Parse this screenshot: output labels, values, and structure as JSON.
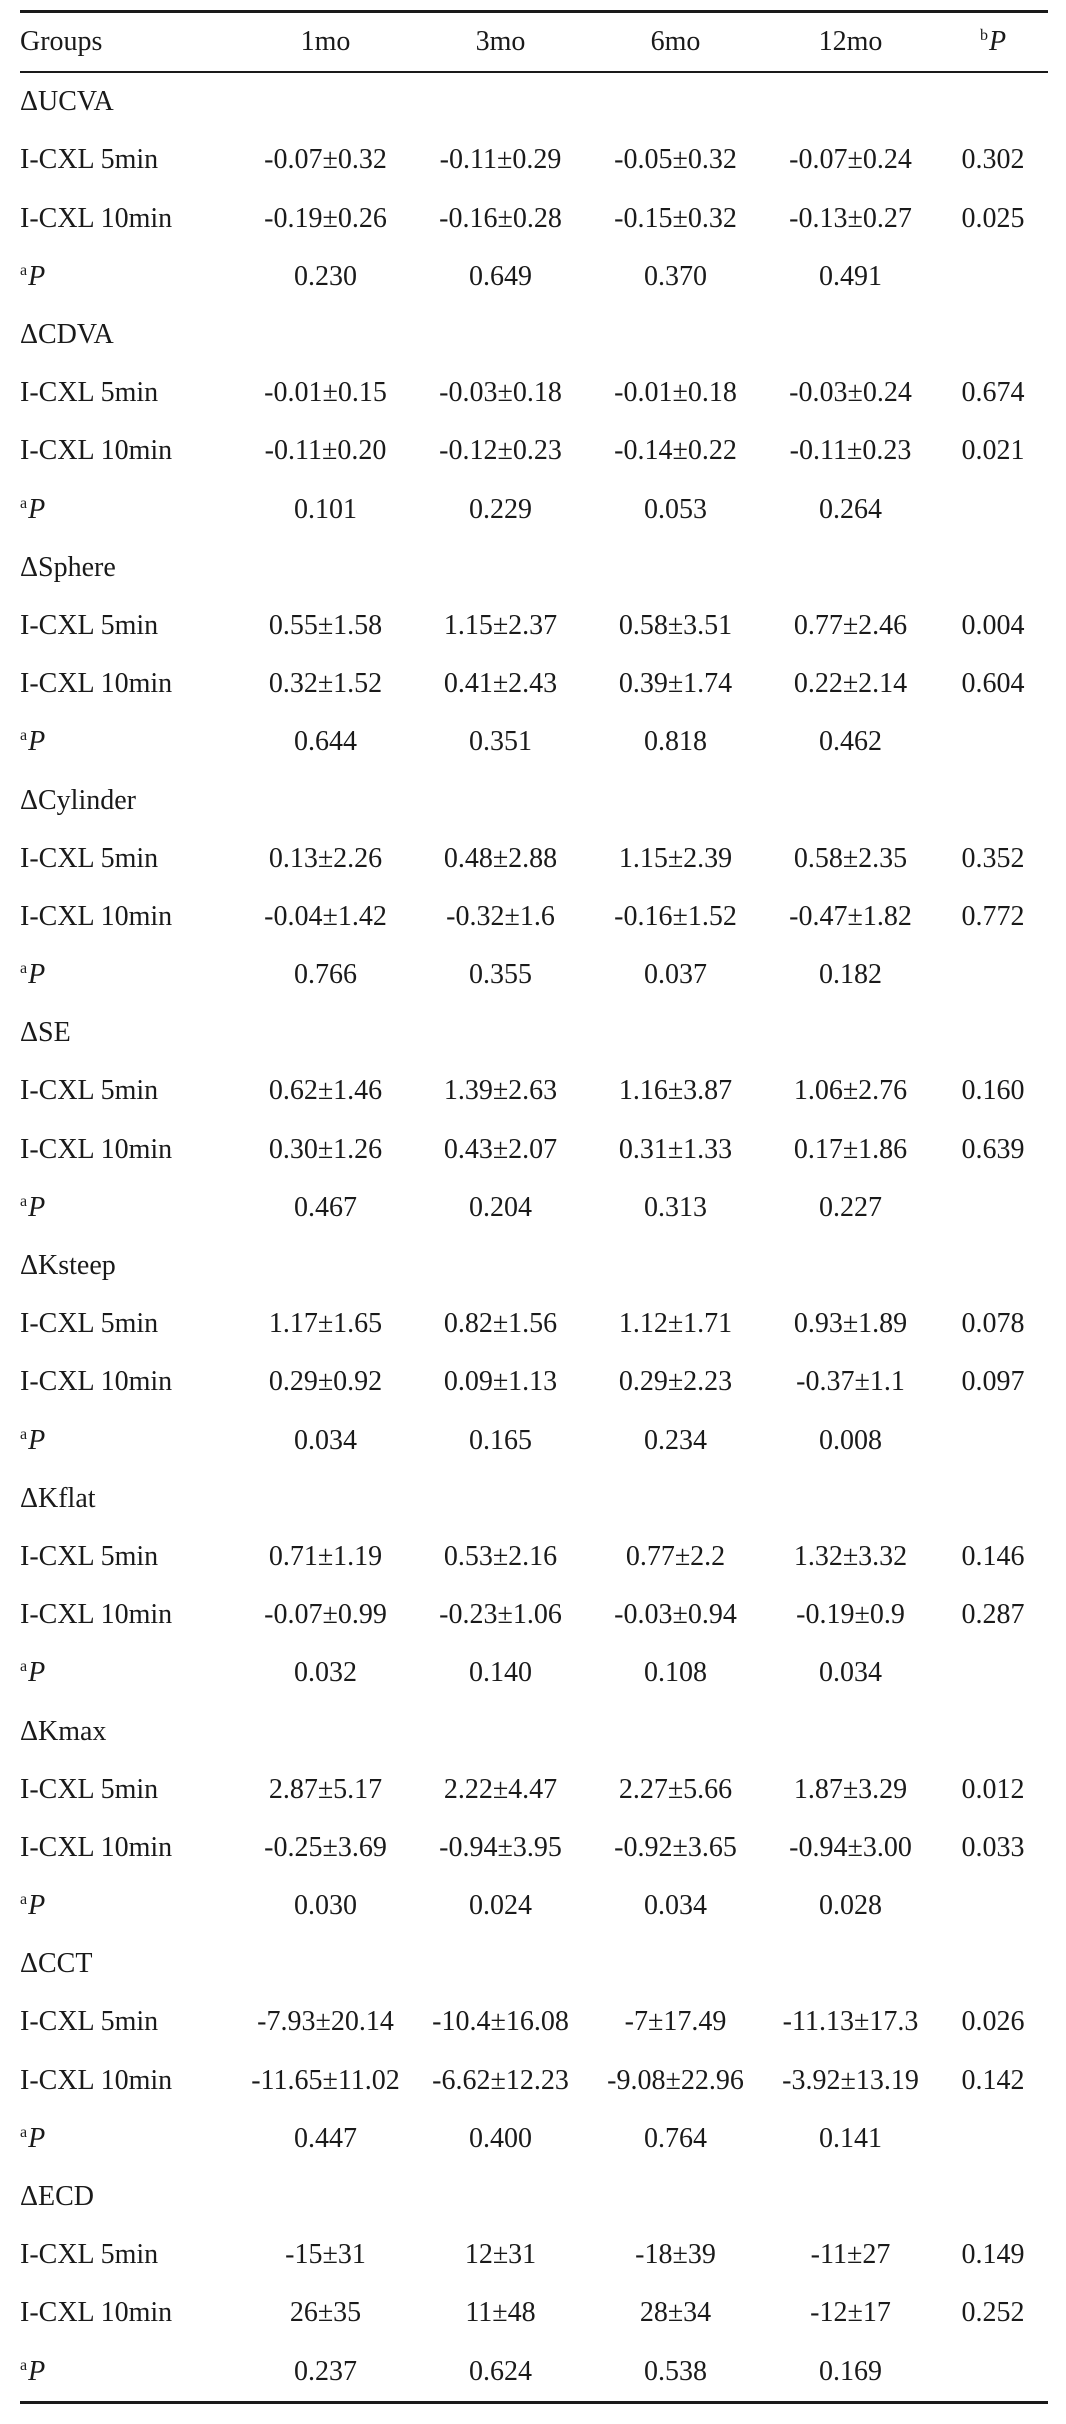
{
  "header": {
    "groups": "Groups",
    "col1": "1mo",
    "col2": "3mo",
    "col3": "6mo",
    "col4": "12mo",
    "pcol_sup": "b",
    "pcol_letter": "P"
  },
  "p_row_sup": "a",
  "p_row_letter": "P",
  "sections": [
    {
      "label": "ΔUCVA",
      "g1": {
        "name": "I-CXL 5min",
        "v": [
          "-0.07±0.32",
          "-0.11±0.29",
          "-0.05±0.32",
          "-0.07±0.24"
        ],
        "p": "0.302"
      },
      "g2": {
        "name": "I-CXL 10min",
        "v": [
          "-0.19±0.26",
          "-0.16±0.28",
          "-0.15±0.32",
          "-0.13±0.27"
        ],
        "p": "0.025"
      },
      "pvals": [
        "0.230",
        "0.649",
        "0.370",
        "0.491"
      ]
    },
    {
      "label": "ΔCDVA",
      "g1": {
        "name": "I-CXL 5min",
        "v": [
          "-0.01±0.15",
          "-0.03±0.18",
          "-0.01±0.18",
          "-0.03±0.24"
        ],
        "p": "0.674"
      },
      "g2": {
        "name": "I-CXL 10min",
        "v": [
          "-0.11±0.20",
          "-0.12±0.23",
          "-0.14±0.22",
          "-0.11±0.23"
        ],
        "p": "0.021"
      },
      "pvals": [
        "0.101",
        "0.229",
        "0.053",
        "0.264"
      ]
    },
    {
      "label": "ΔSphere",
      "g1": {
        "name": "I-CXL 5min",
        "v": [
          "0.55±1.58",
          "1.15±2.37",
          "0.58±3.51",
          "0.77±2.46"
        ],
        "p": "0.004"
      },
      "g2": {
        "name": "I-CXL 10min",
        "v": [
          "0.32±1.52",
          "0.41±2.43",
          "0.39±1.74",
          "0.22±2.14"
        ],
        "p": "0.604"
      },
      "pvals": [
        "0.644",
        "0.351",
        "0.818",
        "0.462"
      ]
    },
    {
      "label": "ΔCylinder",
      "g1": {
        "name": "I-CXL 5min",
        "v": [
          "0.13±2.26",
          "0.48±2.88",
          "1.15±2.39",
          "0.58±2.35"
        ],
        "p": "0.352"
      },
      "g2": {
        "name": "I-CXL 10min",
        "v": [
          "-0.04±1.42",
          "-0.32±1.6",
          "-0.16±1.52",
          "-0.47±1.82"
        ],
        "p": "0.772"
      },
      "pvals": [
        "0.766",
        "0.355",
        "0.037",
        "0.182"
      ]
    },
    {
      "label": "ΔSE",
      "g1": {
        "name": "I-CXL 5min",
        "v": [
          "0.62±1.46",
          "1.39±2.63",
          "1.16±3.87",
          "1.06±2.76"
        ],
        "p": "0.160"
      },
      "g2": {
        "name": "I-CXL 10min",
        "v": [
          "0.30±1.26",
          "0.43±2.07",
          "0.31±1.33",
          "0.17±1.86"
        ],
        "p": "0.639"
      },
      "pvals": [
        "0.467",
        "0.204",
        "0.313",
        "0.227"
      ]
    },
    {
      "label": "ΔKsteep",
      "g1": {
        "name": "I-CXL 5min",
        "v": [
          "1.17±1.65",
          "0.82±1.56",
          "1.12±1.71",
          "0.93±1.89"
        ],
        "p": "0.078"
      },
      "g2": {
        "name": "I-CXL 10min",
        "v": [
          "0.29±0.92",
          "0.09±1.13",
          "0.29±2.23",
          "-0.37±1.1"
        ],
        "p": "0.097"
      },
      "pvals": [
        "0.034",
        "0.165",
        "0.234",
        "0.008"
      ]
    },
    {
      "label": "ΔKflat",
      "g1": {
        "name": "I-CXL 5min",
        "v": [
          "0.71±1.19",
          "0.53±2.16",
          "0.77±2.2",
          "1.32±3.32"
        ],
        "p": "0.146"
      },
      "g2": {
        "name": "I-CXL 10min",
        "v": [
          "-0.07±0.99",
          "-0.23±1.06",
          "-0.03±0.94",
          "-0.19±0.9"
        ],
        "p": "0.287"
      },
      "pvals": [
        "0.032",
        "0.140",
        "0.108",
        "0.034"
      ]
    },
    {
      "label": "ΔKmax",
      "g1": {
        "name": "I-CXL 5min",
        "v": [
          "2.87±5.17",
          "2.22±4.47",
          "2.27±5.66",
          "1.87±3.29"
        ],
        "p": "0.012"
      },
      "g2": {
        "name": "I-CXL 10min",
        "v": [
          "-0.25±3.69",
          "-0.94±3.95",
          "-0.92±3.65",
          "-0.94±3.00"
        ],
        "p": "0.033"
      },
      "pvals": [
        "0.030",
        "0.024",
        "0.034",
        "0.028"
      ]
    },
    {
      "label": "ΔCCT",
      "g1": {
        "name": "I-CXL 5min",
        "v": [
          "-7.93±20.14",
          "-10.4±16.08",
          "-7±17.49",
          "-11.13±17.3"
        ],
        "p": "0.026"
      },
      "g2": {
        "name": "I-CXL 10min",
        "v": [
          "-11.65±11.02",
          "-6.62±12.23",
          "-9.08±22.96",
          "-3.92±13.19"
        ],
        "p": "0.142"
      },
      "pvals": [
        "0.447",
        "0.400",
        "0.764",
        "0.141"
      ]
    },
    {
      "label": "ΔECD",
      "g1": {
        "name": "I-CXL 5min",
        "v": [
          "-15±31",
          "12±31",
          "-18±39",
          "-11±27"
        ],
        "p": "0.149"
      },
      "g2": {
        "name": "I-CXL 10min",
        "v": [
          "26±35",
          "11±48",
          "28±34",
          "-12±17"
        ],
        "p": "0.252"
      },
      "pvals": [
        "0.237",
        "0.624",
        "0.538",
        "0.169"
      ]
    }
  ]
}
